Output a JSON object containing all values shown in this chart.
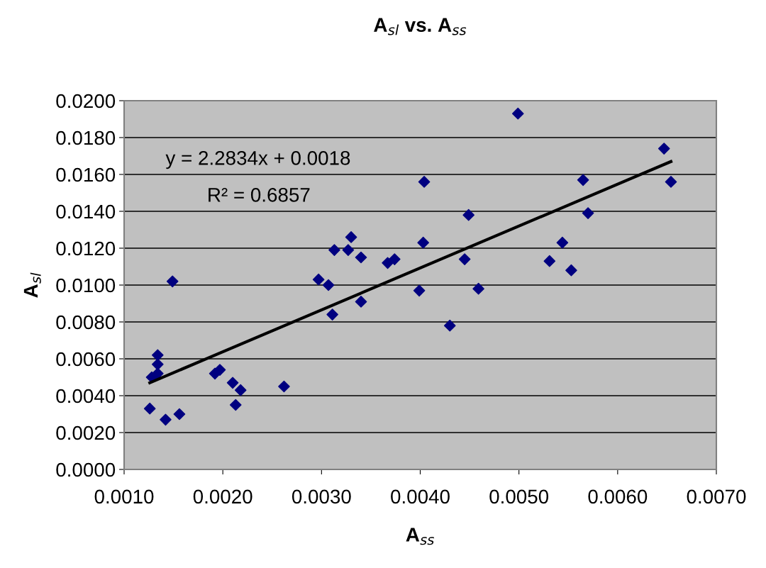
{
  "chart_data": {
    "type": "scatter",
    "title": "A$_{sl}$ vs. A$_{ss}$",
    "xlabel": "A$_{ss}$",
    "ylabel": "A$_{sl}$",
    "annotations": [
      "y = 2.2834x + 0.0018",
      "R² = 0.6857"
    ],
    "xlim": [
      0.001,
      0.007
    ],
    "xticks": [
      {
        "value": 0.001,
        "label": "0.0010"
      },
      {
        "value": 0.002,
        "label": "0.0020"
      },
      {
        "value": 0.003,
        "label": "0.0030"
      },
      {
        "value": 0.004,
        "label": "0.0040"
      },
      {
        "value": 0.005,
        "label": "0.0050"
      },
      {
        "value": 0.006,
        "label": "0.0060"
      },
      {
        "value": 0.007,
        "label": "0.0070"
      }
    ],
    "ylim": [
      0,
      0.02
    ],
    "yticks": [
      {
        "value": 0,
        "label": "0.0000"
      },
      {
        "value": 0.002,
        "label": "0.0020"
      },
      {
        "value": 0.004,
        "label": "0.0040"
      },
      {
        "value": 0.006,
        "label": "0.0060"
      },
      {
        "value": 0.008,
        "label": "0.0080"
      },
      {
        "value": 0.01,
        "label": "0.0100"
      },
      {
        "value": 0.012,
        "label": "0.0120"
      },
      {
        "value": 0.014,
        "label": "0.0140"
      },
      {
        "value": 0.016,
        "label": "0.0160"
      },
      {
        "value": 0.018,
        "label": "0.0180"
      },
      {
        "value": 0.02,
        "label": "0.0200"
      }
    ],
    "grid": "y",
    "legend": false,
    "series": [
      {
        "color": "#000080",
        "marker": "diamond",
        "x": [
          0.00126,
          0.00128,
          0.00134,
          0.00134,
          0.00134,
          0.00142,
          0.00149,
          0.00156,
          0.00192,
          0.00197,
          0.0021,
          0.00213,
          0.00218,
          0.00262,
          0.00297,
          0.00307,
          0.00311,
          0.00313,
          0.00327,
          0.0033,
          0.0034,
          0.0034,
          0.00367,
          0.00374,
          0.00399,
          0.00403,
          0.00404,
          0.0043,
          0.00445,
          0.00449,
          0.00459,
          0.00499,
          0.00531,
          0.00544,
          0.00553,
          0.00565,
          0.0057,
          0.00647,
          0.00654
        ],
        "values": [
          0.0033,
          0.005,
          0.0052,
          0.0057,
          0.0062,
          0.0027,
          0.0102,
          0.003,
          0.0052,
          0.0054,
          0.0047,
          0.0035,
          0.0043,
          0.0045,
          0.0103,
          0.01,
          0.0084,
          0.0119,
          0.0119,
          0.0126,
          0.0115,
          0.0091,
          0.0112,
          0.0114,
          0.0097,
          0.0123,
          0.0156,
          0.0078,
          0.0114,
          0.0138,
          0.0098,
          0.0193,
          0.0113,
          0.0123,
          0.0108,
          0.0157,
          0.0139,
          0.0174,
          0.0156
        ]
      },
      {
        "type": "line",
        "marker": "none",
        "color": "#000000",
        "x": [
          0.00126,
          0.00654
        ],
        "values": [
          0.0047,
          0.0167
        ]
      }
    ]
  }
}
